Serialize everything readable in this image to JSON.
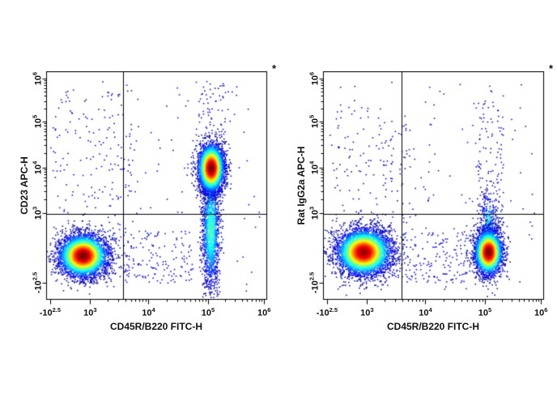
{
  "figure": {
    "background_color": "#ffffff",
    "description": "Two-panel flow cytometry pseudocolor density dot plots with quadrant gates"
  },
  "chart_data": [
    {
      "type": "scatter",
      "subtype": "flow-cytometry-density",
      "title": "",
      "x_label": "CD45R/B220 FITC-H",
      "y_label": "CD23 APC-H",
      "annotation": "*",
      "axis_scale": "biexponential-log",
      "grid": "off",
      "colormap": [
        "#00008f",
        "#00ffff",
        "#40ff40",
        "#ffff00",
        "#ff0000"
      ],
      "x_ticks": [
        {
          "base": "-10",
          "exp": "2.5",
          "pos": 0.018
        },
        {
          "base": "10",
          "exp": "3",
          "pos": 0.2
        },
        {
          "base": "10",
          "exp": "4",
          "pos": 0.465
        },
        {
          "base": "10",
          "exp": "5",
          "pos": 0.735
        },
        {
          "base": "10",
          "exp": "6",
          "pos": 0.99
        }
      ],
      "y_ticks": [
        {
          "base": "10",
          "exp": "6",
          "pos": 0.968
        },
        {
          "base": "10",
          "exp": "5",
          "pos": 0.78
        },
        {
          "base": "10",
          "exp": "4",
          "pos": 0.578
        },
        {
          "base": "10",
          "exp": "3",
          "pos": 0.379
        },
        {
          "base": "-10",
          "exp": "2.5",
          "pos": 0.071
        }
      ],
      "quadrant_gate": {
        "x_pos": 0.348,
        "y_pos": 0.372
      },
      "seed": 12345,
      "populations": [
        {
          "name": "background-noise",
          "type": "scatter",
          "x0": 0.02,
          "x1": 0.97,
          "y0": 0.03,
          "y1": 0.96,
          "n": 130
        },
        {
          "name": "left-mid-sparse-scatter",
          "type": "scatter",
          "x0": 0.04,
          "x1": 0.42,
          "y0": 0.28,
          "y1": 0.92,
          "n": 150
        },
        {
          "name": "bottom-bridge-scatter",
          "type": "scatter",
          "x0": 0.26,
          "x1": 0.68,
          "y0": 0.07,
          "y1": 0.3,
          "n": 170
        },
        {
          "name": "upper-right-sparse-scatter",
          "type": "scatter",
          "x0": 0.68,
          "x1": 0.84,
          "y0": 0.72,
          "y1": 0.96,
          "n": 55
        },
        {
          "name": "cluster-right-vertical-tail",
          "approx_center": [
            "~1x10^5",
            "~10^2.5-10^3.5"
          ],
          "type": "gauss",
          "cx": 0.748,
          "cy": 0.3,
          "sx": 0.02,
          "sy": 0.135,
          "n": 1500,
          "intensity": 0.45
        },
        {
          "name": "dense-cluster-bottom-left",
          "approx_center": [
            "~5x10^2",
            "~4x10^2"
          ],
          "type": "gauss",
          "cx": 0.168,
          "cy": 0.19,
          "sx": 0.056,
          "sy": 0.047,
          "n": 4200,
          "intensity": 1.0
        },
        {
          "name": "dense-cluster-upper-right",
          "approx_center": [
            "~1x10^5",
            "~1x10^4"
          ],
          "type": "gauss",
          "cx": 0.75,
          "cy": 0.574,
          "sx": 0.03,
          "sy": 0.055,
          "n": 3400,
          "intensity": 1.0
        }
      ]
    },
    {
      "type": "scatter",
      "subtype": "flow-cytometry-density",
      "title": "",
      "x_label": "CD45R/B220 FITC-H",
      "y_label": "Rat IgG2a APC-H",
      "annotation": "*",
      "axis_scale": "biexponential-log",
      "grid": "off",
      "colormap": [
        "#00008f",
        "#00ffff",
        "#40ff40",
        "#ffff00",
        "#ff0000"
      ],
      "x_ticks": [
        {
          "base": "-10",
          "exp": "2.5",
          "pos": 0.018
        },
        {
          "base": "10",
          "exp": "3",
          "pos": 0.2
        },
        {
          "base": "10",
          "exp": "4",
          "pos": 0.465
        },
        {
          "base": "10",
          "exp": "5",
          "pos": 0.735
        },
        {
          "base": "10",
          "exp": "6",
          "pos": 0.99
        }
      ],
      "y_ticks": [
        {
          "base": "10",
          "exp": "6",
          "pos": 0.968
        },
        {
          "base": "10",
          "exp": "5",
          "pos": 0.78
        },
        {
          "base": "10",
          "exp": "4",
          "pos": 0.578
        },
        {
          "base": "10",
          "exp": "3",
          "pos": 0.379
        },
        {
          "base": "-10",
          "exp": "2.5",
          "pos": 0.071
        }
      ],
      "quadrant_gate": {
        "x_pos": 0.355,
        "y_pos": 0.372
      },
      "seed": 54321,
      "populations": [
        {
          "name": "background-noise",
          "type": "scatter",
          "x0": 0.02,
          "x1": 0.97,
          "y0": 0.03,
          "y1": 0.96,
          "n": 130
        },
        {
          "name": "left-mid-sparse-scatter",
          "type": "scatter",
          "x0": 0.03,
          "x1": 0.42,
          "y0": 0.28,
          "y1": 0.86,
          "n": 140
        },
        {
          "name": "bottom-bridge-scatter",
          "type": "scatter",
          "x0": 0.28,
          "x1": 0.66,
          "y0": 0.07,
          "y1": 0.3,
          "n": 170
        },
        {
          "name": "right-column-sparse-scatter",
          "type": "scatter",
          "x0": 0.7,
          "x1": 0.82,
          "y0": 0.3,
          "y1": 0.93,
          "n": 110
        },
        {
          "name": "cluster-right-upper-fringe",
          "approx_center": [
            "~1x10^5",
            "~2x10^3"
          ],
          "type": "gauss",
          "cx": 0.752,
          "cy": 0.32,
          "sx": 0.02,
          "sy": 0.085,
          "n": 380,
          "intensity": 0.35
        },
        {
          "name": "dense-cluster-bottom-left",
          "approx_center": [
            "~6x10^2",
            "~5x10^2"
          ],
          "type": "gauss",
          "cx": 0.185,
          "cy": 0.205,
          "sx": 0.062,
          "sy": 0.051,
          "n": 4600,
          "intensity": 0.97
        },
        {
          "name": "dense-cluster-bottom-right",
          "approx_center": [
            "~1x10^5",
            "~5x10^2"
          ],
          "type": "gauss",
          "cx": 0.752,
          "cy": 0.205,
          "sx": 0.032,
          "sy": 0.05,
          "n": 3000,
          "intensity": 1.0
        }
      ]
    }
  ]
}
